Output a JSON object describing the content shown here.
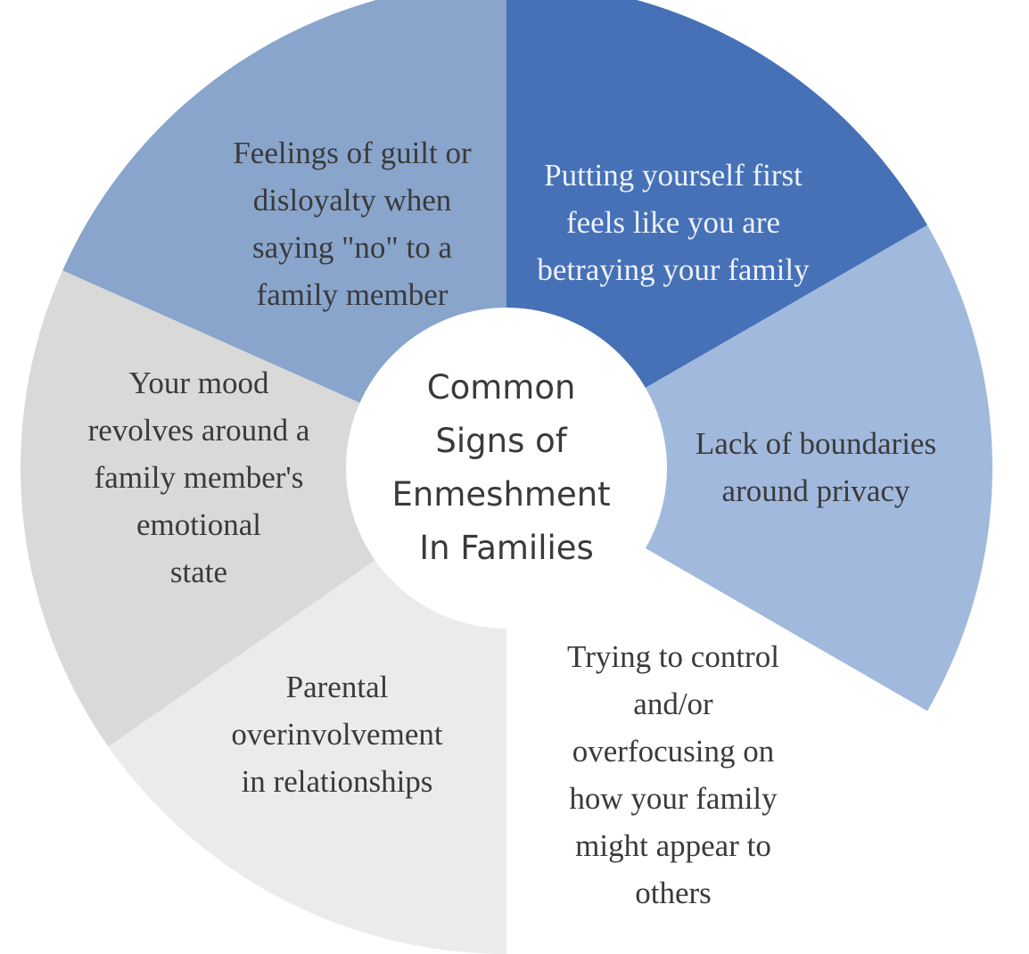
{
  "center": {
    "lines": [
      "Common",
      "Signs of",
      "Enmeshment",
      "In Families"
    ]
  },
  "segments": [
    {
      "id": "guilt",
      "color": "#89a5cc",
      "lines": [
        "Feelings of guilt or",
        "disloyalty when",
        "saying \"no\" to a",
        "family member"
      ]
    },
    {
      "id": "putting-yourself-first",
      "color": "#4671b7",
      "lines": [
        "Putting yourself first",
        "feels like you are",
        "betraying your family"
      ]
    },
    {
      "id": "boundaries",
      "color": "#a1b9dd",
      "lines": [
        "Lack of boundaries",
        "around privacy"
      ]
    },
    {
      "id": "control",
      "color": "#ffffff",
      "lines": [
        "Trying to control",
        "and/or",
        "overfocusing on",
        "how your family",
        "might appear to",
        "others"
      ]
    },
    {
      "id": "overinvolvement",
      "color": "#ebebeb",
      "lines": [
        "Parental",
        "overinvolvement",
        "in relationships"
      ]
    },
    {
      "id": "mood",
      "color": "#d9d9d9",
      "lines": [
        "Your mood",
        "revolves around a",
        "family member's",
        "emotional",
        "state"
      ]
    }
  ]
}
